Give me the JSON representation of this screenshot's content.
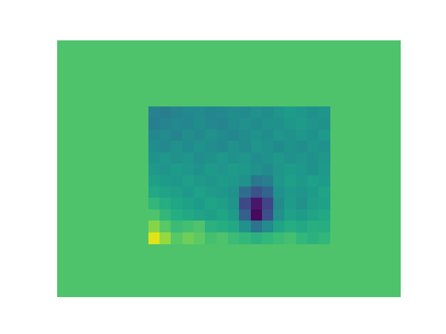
{
  "chart_data": {
    "type": "heatmap",
    "xlim": [
      -8,
      22.2
    ],
    "ylim": [
      -5.8,
      16.7
    ],
    "tick_labels": false,
    "color_range": [
      0,
      1
    ],
    "fill_value": 0.72,
    "cells": [
      [
        0.44,
        0.42,
        0.45,
        0.47,
        0.48,
        0.46,
        0.47,
        0.49,
        0.48,
        0.5,
        0.49,
        0.52,
        0.55,
        0.53,
        0.5,
        0.52
      ],
      [
        0.42,
        0.45,
        0.47,
        0.46,
        0.49,
        0.47,
        0.45,
        0.48,
        0.5,
        0.48,
        0.51,
        0.5,
        0.53,
        0.55,
        0.52,
        0.5
      ],
      [
        0.46,
        0.48,
        0.45,
        0.49,
        0.47,
        0.5,
        0.48,
        0.46,
        0.49,
        0.51,
        0.49,
        0.52,
        0.5,
        0.53,
        0.51,
        0.54
      ],
      [
        0.49,
        0.47,
        0.5,
        0.48,
        0.51,
        0.49,
        0.47,
        0.5,
        0.48,
        0.52,
        0.5,
        0.48,
        0.51,
        0.49,
        0.52,
        0.5
      ],
      [
        0.51,
        0.53,
        0.5,
        0.52,
        0.49,
        0.51,
        0.53,
        0.5,
        0.52,
        0.49,
        0.51,
        0.53,
        0.5,
        0.52,
        0.5,
        0.53
      ],
      [
        0.54,
        0.52,
        0.55,
        0.53,
        0.51,
        0.54,
        0.52,
        0.55,
        0.53,
        0.5,
        0.48,
        0.52,
        0.55,
        0.53,
        0.51,
        0.54
      ],
      [
        0.57,
        0.55,
        0.53,
        0.56,
        0.54,
        0.52,
        0.55,
        0.53,
        0.5,
        0.4,
        0.42,
        0.53,
        0.56,
        0.54,
        0.57,
        0.55
      ],
      [
        0.6,
        0.58,
        0.56,
        0.54,
        0.57,
        0.55,
        0.53,
        0.5,
        0.35,
        0.25,
        0.32,
        0.5,
        0.54,
        0.52,
        0.55,
        0.58
      ],
      [
        0.66,
        0.62,
        0.59,
        0.57,
        0.55,
        0.58,
        0.56,
        0.52,
        0.22,
        0.06,
        0.2,
        0.48,
        0.55,
        0.5,
        0.56,
        0.57
      ],
      [
        0.72,
        0.66,
        0.62,
        0.6,
        0.58,
        0.56,
        0.59,
        0.55,
        0.3,
        0.03,
        0.24,
        0.5,
        0.57,
        0.55,
        0.58,
        0.6
      ],
      [
        0.82,
        0.74,
        0.68,
        0.7,
        0.72,
        0.64,
        0.62,
        0.6,
        0.5,
        0.38,
        0.48,
        0.58,
        0.62,
        0.6,
        0.63,
        0.62
      ],
      [
        0.95,
        0.84,
        0.74,
        0.78,
        0.75,
        0.7,
        0.72,
        0.68,
        0.66,
        0.64,
        0.66,
        0.68,
        0.7,
        0.66,
        0.64,
        0.66
      ]
    ]
  }
}
